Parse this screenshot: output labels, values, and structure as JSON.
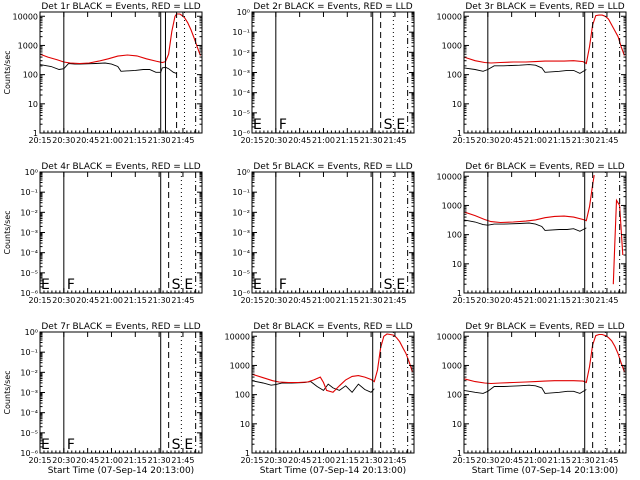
{
  "figure": {
    "background": "#ffffff",
    "axis_color": "#000000",
    "events_color": "#000000",
    "lld_color": "#e00000"
  },
  "chart_data": [
    {
      "id": "det1",
      "type": "line",
      "scale": "log",
      "title": "Det 1r BLACK = Events, RED = LLD",
      "ylabel": "Counts/sec",
      "yticks": [
        "1",
        "10",
        "100",
        "1000",
        "10000"
      ],
      "ylim": [
        1,
        14000
      ],
      "xticks": [
        "20:15",
        "20:30",
        "20:45",
        "21:00",
        "21:15",
        "21:30",
        "21:45"
      ],
      "xlabel": "",
      "xlim_min": [
        15,
        117
      ],
      "markers": [
        {
          "t": 30,
          "style": "solid",
          "label": ""
        },
        {
          "t": 91,
          "style": "solid",
          "label": ""
        },
        {
          "t": 94,
          "style": "solid",
          "label": ""
        },
        {
          "t": 101,
          "style": "dash",
          "label": ""
        },
        {
          "t": 106,
          "style": "dot",
          "label": ""
        },
        {
          "t": 113,
          "style": "dashdot",
          "label": ""
        }
      ],
      "series": [
        {
          "name": "Events",
          "color": "#000000",
          "x": [
            15,
            22,
            27,
            30,
            33,
            37,
            40,
            50,
            56,
            60,
            64,
            66,
            75,
            80,
            84,
            88,
            91,
            92,
            94,
            96,
            99,
            101
          ],
          "y": [
            220,
            190,
            150,
            160,
            240,
            230,
            230,
            240,
            250,
            230,
            190,
            130,
            140,
            150,
            150,
            120,
            120,
            170,
            180,
            160,
            120,
            110
          ]
        },
        {
          "name": "LLD",
          "color": "#e00000",
          "x": [
            15,
            20,
            26,
            30,
            34,
            40,
            46,
            52,
            58,
            64,
            70,
            76,
            82,
            88,
            92,
            94,
            96,
            98,
            100,
            101,
            103,
            104,
            106,
            108,
            110,
            112,
            114,
            116
          ],
          "y": [
            500,
            400,
            320,
            270,
            250,
            240,
            250,
            290,
            350,
            430,
            470,
            440,
            350,
            290,
            260,
            280,
            500,
            3000,
            10000,
            12000,
            12000,
            11000,
            9000,
            6000,
            3500,
            1800,
            900,
            450
          ]
        }
      ],
      "letters": []
    },
    {
      "id": "det2",
      "type": "line",
      "scale": "log",
      "title": "Det 2r BLACK = Events, RED = LLD",
      "ylabel": "",
      "yticks": [
        "10⁻⁶",
        "10⁻⁵",
        "10⁻⁴",
        "10⁻³",
        "10⁻²",
        "10⁻¹",
        "10⁰"
      ],
      "ylim": [
        1e-06,
        1
      ],
      "xticks": [
        "20:15",
        "20:30",
        "20:45",
        "21:00",
        "21:15",
        "21:30",
        "21:45"
      ],
      "xlabel": "",
      "xlim_min": [
        15,
        117
      ],
      "markers": [
        {
          "t": 30,
          "style": "solid",
          "label": "F"
        },
        {
          "t": 91,
          "style": "solid",
          "label": ""
        },
        {
          "t": 96,
          "style": "dash",
          "label": "S"
        },
        {
          "t": 104,
          "style": "dot",
          "label": "E"
        },
        {
          "t": 113,
          "style": "dashdot",
          "label": ""
        }
      ],
      "series": [],
      "letters": [
        {
          "t": 15,
          "text": "E"
        }
      ]
    },
    {
      "id": "det3",
      "type": "line",
      "scale": "log",
      "title": "Det 3r BLACK = Events, RED = LLD",
      "ylabel": "",
      "yticks": [
        "1",
        "10",
        "100",
        "1000",
        "10000"
      ],
      "ylim": [
        1,
        14000
      ],
      "xticks": [
        "20:15",
        "20:30",
        "20:45",
        "21:00",
        "21:15",
        "21:30",
        "21:45"
      ],
      "xlabel": "",
      "xlim_min": [
        15,
        117
      ],
      "markers": [
        {
          "t": 30,
          "style": "solid",
          "label": ""
        },
        {
          "t": 91,
          "style": "solid",
          "label": ""
        },
        {
          "t": 96,
          "style": "dash",
          "label": ""
        },
        {
          "t": 104,
          "style": "dot",
          "label": ""
        },
        {
          "t": 113,
          "style": "dashdot",
          "label": ""
        }
      ],
      "series": [
        {
          "name": "Events",
          "color": "#000000",
          "x": [
            15,
            22,
            27,
            30,
            34,
            40,
            50,
            56,
            60,
            64,
            66,
            75,
            80,
            84,
            88,
            92
          ],
          "y": [
            170,
            150,
            130,
            150,
            200,
            200,
            210,
            220,
            210,
            170,
            120,
            130,
            140,
            140,
            110,
            150
          ]
        },
        {
          "name": "LLD",
          "color": "#e00000",
          "x": [
            15,
            22,
            28,
            32,
            38,
            46,
            54,
            60,
            66,
            72,
            78,
            84,
            90,
            92,
            94,
            96,
            98,
            100,
            102,
            104,
            106,
            109,
            112,
            114,
            116
          ],
          "y": [
            400,
            300,
            260,
            250,
            260,
            270,
            270,
            280,
            290,
            290,
            290,
            300,
            280,
            240,
            900,
            5000,
            10500,
            11000,
            11000,
            10000,
            8000,
            4000,
            2000,
            900,
            450
          ]
        }
      ],
      "letters": []
    },
    {
      "id": "det4",
      "type": "line",
      "scale": "log",
      "title": "Det 4r BLACK = Events, RED = LLD",
      "ylabel": "Counts/sec",
      "yticks": [
        "10⁻⁶",
        "10⁻⁵",
        "10⁻⁴",
        "10⁻³",
        "10⁻²",
        "10⁻¹",
        "10⁰"
      ],
      "ylim": [
        1e-06,
        1
      ],
      "xticks": [
        "20:15",
        "20:30",
        "20:45",
        "21:00",
        "21:15",
        "21:30",
        "21:45"
      ],
      "xlabel": "",
      "xlim_min": [
        15,
        117
      ],
      "markers": [
        {
          "t": 30,
          "style": "solid",
          "label": "F"
        },
        {
          "t": 91,
          "style": "solid",
          "label": ""
        },
        {
          "t": 96,
          "style": "dash",
          "label": "S"
        },
        {
          "t": 104,
          "style": "dot",
          "label": "E"
        },
        {
          "t": 113,
          "style": "dashdot",
          "label": ""
        }
      ],
      "series": [],
      "letters": [
        {
          "t": 15,
          "text": "E"
        }
      ]
    },
    {
      "id": "det5",
      "type": "line",
      "scale": "log",
      "title": "Det 5r BLACK = Events, RED = LLD",
      "ylabel": "",
      "yticks": [
        "10⁻⁶",
        "10⁻⁵",
        "10⁻⁴",
        "10⁻³",
        "10⁻²",
        "10⁻¹",
        "10⁰"
      ],
      "ylim": [
        1e-06,
        1
      ],
      "xticks": [
        "20:15",
        "20:30",
        "20:45",
        "21:00",
        "21:15",
        "21:30",
        "21:45"
      ],
      "xlabel": "",
      "xlim_min": [
        15,
        117
      ],
      "markers": [
        {
          "t": 30,
          "style": "solid",
          "label": "F"
        },
        {
          "t": 91,
          "style": "solid",
          "label": ""
        },
        {
          "t": 96,
          "style": "dash",
          "label": "S"
        },
        {
          "t": 104,
          "style": "dot",
          "label": "E"
        },
        {
          "t": 113,
          "style": "dashdot",
          "label": ""
        }
      ],
      "series": [],
      "letters": [
        {
          "t": 15,
          "text": "E"
        }
      ]
    },
    {
      "id": "det6",
      "type": "line",
      "scale": "log",
      "title": "Det 6r BLACK = Events, RED = LLD",
      "ylabel": "",
      "yticks": [
        "1",
        "10",
        "100",
        "1000",
        "10000"
      ],
      "ylim": [
        1,
        14000
      ],
      "xticks": [
        "20:15",
        "20:30",
        "20:45",
        "21:00",
        "21:15",
        "21:30",
        "21:45"
      ],
      "xlabel": "",
      "xlim_min": [
        15,
        117
      ],
      "markers": [
        {
          "t": 30,
          "style": "solid",
          "label": ""
        },
        {
          "t": 91,
          "style": "solid",
          "label": ""
        },
        {
          "t": 96,
          "style": "dash",
          "label": ""
        },
        {
          "t": 104,
          "style": "dot",
          "label": ""
        },
        {
          "t": 113,
          "style": "dashdot",
          "label": ""
        }
      ],
      "series": [
        {
          "name": "Events",
          "color": "#000000",
          "x": [
            15,
            22,
            27,
            30,
            34,
            40,
            50,
            56,
            60,
            64,
            66,
            75,
            80,
            84,
            88,
            92
          ],
          "y": [
            320,
            270,
            220,
            210,
            230,
            230,
            240,
            250,
            230,
            190,
            140,
            150,
            150,
            160,
            130,
            170
          ]
        },
        {
          "name": "LLD",
          "color": "#e00000",
          "x": [
            15,
            22,
            28,
            32,
            38,
            46,
            54,
            60,
            66,
            72,
            78,
            84,
            90,
            92,
            94,
            96,
            97
          ],
          "y": [
            600,
            450,
            330,
            280,
            260,
            270,
            290,
            320,
            380,
            420,
            430,
            400,
            330,
            300,
            900,
            5000,
            11000
          ]
        },
        {
          "name": "LLD",
          "color": "#e00000",
          "x": [
            109,
            110,
            111,
            113,
            115
          ],
          "y": [
            2,
            60,
            1500,
            1000,
            20
          ]
        }
      ],
      "letters": []
    },
    {
      "id": "det7",
      "type": "line",
      "scale": "log",
      "title": "Det 7r BLACK = Events, RED = LLD",
      "ylabel": "Counts/sec",
      "yticks": [
        "10⁻⁶",
        "10⁻⁵",
        "10⁻⁴",
        "10⁻³",
        "10⁻²",
        "10⁻¹",
        "10⁰"
      ],
      "ylim": [
        1e-06,
        1
      ],
      "xticks": [
        "20:15",
        "20:30",
        "20:45",
        "21:00",
        "21:15",
        "21:30",
        "21:45"
      ],
      "xlabel": "Start Time (07-Sep-14 20:13:00)",
      "xlim_min": [
        15,
        117
      ],
      "markers": [
        {
          "t": 30,
          "style": "solid",
          "label": "F"
        },
        {
          "t": 91,
          "style": "solid",
          "label": ""
        },
        {
          "t": 96,
          "style": "dash",
          "label": "S"
        },
        {
          "t": 104,
          "style": "dot",
          "label": "E"
        },
        {
          "t": 113,
          "style": "dashdot",
          "label": ""
        }
      ],
      "series": [],
      "letters": [
        {
          "t": 15,
          "text": "E"
        }
      ]
    },
    {
      "id": "det8",
      "type": "line",
      "scale": "log",
      "title": "Det 8r BLACK = Events, RED = LLD",
      "ylabel": "",
      "yticks": [
        "1",
        "10",
        "100",
        "1000",
        "10000"
      ],
      "ylim": [
        1,
        14000
      ],
      "xticks": [
        "20:15",
        "20:30",
        "20:45",
        "21:00",
        "21:15",
        "21:30",
        "21:45"
      ],
      "xlabel": "Start Time (07-Sep-14 20:13:00)",
      "xlim_min": [
        15,
        117
      ],
      "markers": [
        {
          "t": 30,
          "style": "solid",
          "label": ""
        },
        {
          "t": 91,
          "style": "solid",
          "label": ""
        },
        {
          "t": 96,
          "style": "dash",
          "label": ""
        },
        {
          "t": 104,
          "style": "dot",
          "label": ""
        },
        {
          "t": 113,
          "style": "dashdot",
          "label": ""
        }
      ],
      "series": [
        {
          "name": "Events",
          "color": "#000000",
          "x": [
            15,
            22,
            27,
            30,
            34,
            40,
            48,
            52,
            56,
            60,
            63,
            66,
            70,
            74,
            78,
            82,
            86,
            90,
            92
          ],
          "y": [
            300,
            250,
            210,
            220,
            250,
            250,
            260,
            280,
            190,
            140,
            230,
            170,
            140,
            200,
            120,
            230,
            150,
            120,
            160
          ]
        },
        {
          "name": "LLD",
          "color": "#e00000",
          "x": [
            15,
            22,
            28,
            32,
            38,
            44,
            50,
            54,
            58,
            60,
            62,
            66,
            70,
            74,
            78,
            82,
            86,
            90,
            92,
            94,
            96,
            98,
            100,
            102,
            104,
            106,
            108,
            110,
            112,
            114,
            116
          ],
          "y": [
            500,
            380,
            300,
            270,
            260,
            260,
            270,
            320,
            400,
            260,
            140,
            120,
            200,
            320,
            420,
            450,
            400,
            330,
            280,
            700,
            4000,
            10000,
            12000,
            11500,
            11000,
            9000,
            6500,
            4000,
            2500,
            1300,
            600
          ]
        }
      ],
      "letters": []
    },
    {
      "id": "det9",
      "type": "line",
      "scale": "log",
      "title": "Det 9r BLACK = Events, RED = LLD",
      "ylabel": "",
      "yticks": [
        "1",
        "10",
        "100",
        "1000",
        "10000"
      ],
      "ylim": [
        1,
        14000
      ],
      "xticks": [
        "20:15",
        "20:30",
        "20:45",
        "21:00",
        "21:15",
        "21:30",
        "21:45"
      ],
      "xlabel": "Start Time (07-Sep-14 20:13:00)",
      "xlim_min": [
        15,
        117
      ],
      "markers": [
        {
          "t": 30,
          "style": "solid",
          "label": ""
        },
        {
          "t": 91,
          "style": "solid",
          "label": ""
        },
        {
          "t": 96,
          "style": "dash",
          "label": ""
        },
        {
          "t": 104,
          "style": "dot",
          "label": ""
        },
        {
          "t": 113,
          "style": "dashdot",
          "label": ""
        }
      ],
      "series": [
        {
          "name": "Events",
          "color": "#000000",
          "x": [
            15,
            22,
            27,
            30,
            34,
            40,
            50,
            56,
            60,
            64,
            66,
            75,
            80,
            84,
            88,
            92
          ],
          "y": [
            140,
            120,
            110,
            130,
            190,
            190,
            200,
            210,
            200,
            170,
            110,
            120,
            130,
            130,
            110,
            150
          ]
        },
        {
          "name": "LLD",
          "color": "#e00000",
          "x": [
            15,
            22,
            28,
            32,
            38,
            46,
            54,
            60,
            66,
            72,
            78,
            84,
            90,
            92,
            94,
            96,
            98,
            100,
            102,
            104,
            106,
            108,
            110,
            112,
            114,
            116
          ],
          "y": [
            350,
            280,
            250,
            240,
            250,
            260,
            270,
            280,
            290,
            300,
            300,
            300,
            290,
            260,
            900,
            5000,
            10500,
            11500,
            11500,
            10500,
            9000,
            7000,
            4500,
            2500,
            1200,
            600
          ]
        }
      ],
      "letters": []
    }
  ]
}
